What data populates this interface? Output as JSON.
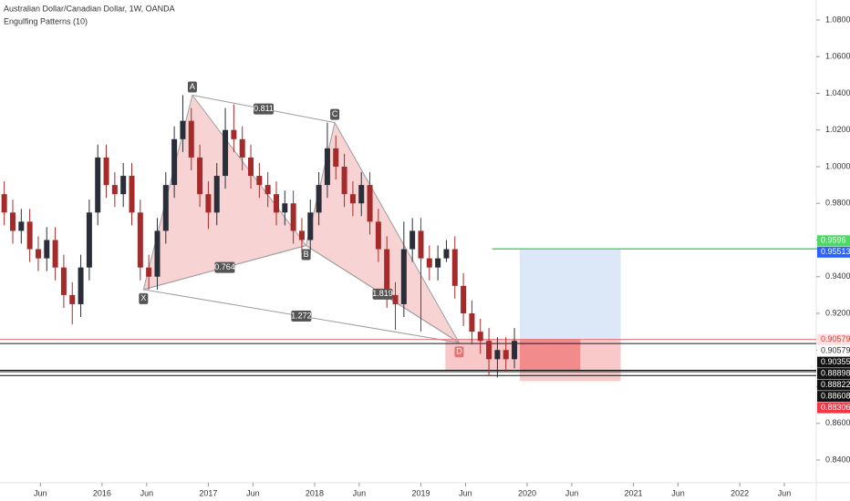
{
  "chart_data": {
    "type": "candlestick",
    "title": "Australian Dollar/Canadian Dollar, 1W, OANDA",
    "subtitle": "Engulfing Patterns (10)",
    "up_color": "#2a2e39",
    "down_color": "#a52a2a",
    "x": [
      2015.08,
      2015.16,
      2015.24,
      2015.32,
      2015.4,
      2015.48,
      2015.56,
      2015.64,
      2015.72,
      2015.8,
      2015.88,
      2015.96,
      2016.04,
      2016.12,
      2016.2,
      2016.28,
      2016.36,
      2016.44,
      2016.52,
      2016.6,
      2016.68,
      2016.76,
      2016.84,
      2016.92,
      2017.0,
      2017.08,
      2017.16,
      2017.24,
      2017.32,
      2017.4,
      2017.48,
      2017.56,
      2017.64,
      2017.72,
      2017.8,
      2017.88,
      2017.96,
      2018.04,
      2018.12,
      2018.2,
      2018.28,
      2018.36,
      2018.44,
      2018.52,
      2018.6,
      2018.68,
      2018.76,
      2018.84,
      2018.92,
      2019.0,
      2019.08,
      2019.16,
      2019.24,
      2019.32,
      2019.4,
      2019.48,
      2019.56,
      2019.64,
      2019.72,
      2019.8,
      2019.88
    ],
    "open": [
      0.985,
      0.975,
      0.965,
      0.97,
      0.955,
      0.95,
      0.96,
      0.945,
      0.93,
      0.925,
      0.945,
      0.975,
      1.005,
      0.99,
      0.985,
      0.995,
      0.975,
      0.945,
      0.94,
      0.965,
      0.99,
      1.015,
      1.025,
      1.005,
      0.985,
      0.975,
      0.995,
      1.02,
      1.015,
      1.005,
      0.995,
      0.99,
      0.985,
      0.975,
      0.98,
      0.965,
      0.96,
      0.975,
      0.99,
      1.01,
      1.0,
      0.985,
      0.98,
      0.99,
      0.97,
      0.955,
      0.93,
      0.925,
      0.955,
      0.965,
      0.95,
      0.945,
      0.95,
      0.955,
      0.935,
      0.92,
      0.91,
      0.905,
      0.895,
      0.9,
      0.895
    ],
    "high": [
      0.992,
      0.982,
      0.977,
      0.977,
      0.962,
      0.967,
      0.967,
      0.952,
      0.937,
      0.952,
      0.982,
      1.012,
      1.012,
      0.997,
      1.002,
      1.002,
      0.982,
      0.952,
      0.972,
      0.997,
      1.022,
      1.039,
      1.032,
      1.012,
      0.992,
      1.002,
      1.032,
      1.034,
      1.022,
      1.012,
      1.002,
      0.997,
      0.992,
      0.987,
      0.987,
      0.972,
      0.982,
      0.997,
      1.024,
      1.017,
      1.007,
      0.992,
      0.997,
      0.997,
      0.977,
      0.962,
      0.937,
      0.97,
      0.972,
      0.972,
      0.957,
      0.957,
      0.96,
      0.962,
      0.942,
      0.927,
      0.917,
      0.912,
      0.907,
      0.907,
      0.912
    ],
    "low": [
      0.968,
      0.958,
      0.958,
      0.948,
      0.943,
      0.943,
      0.938,
      0.923,
      0.914,
      0.918,
      0.938,
      0.968,
      0.983,
      0.978,
      0.978,
      0.968,
      0.938,
      0.933,
      0.933,
      0.958,
      0.983,
      1.008,
      0.998,
      0.978,
      0.966,
      0.968,
      0.988,
      1.008,
      0.998,
      0.988,
      0.983,
      0.978,
      0.968,
      0.968,
      0.958,
      0.953,
      0.953,
      0.968,
      0.983,
      0.993,
      0.978,
      0.973,
      0.973,
      0.963,
      0.948,
      0.923,
      0.911,
      0.918,
      0.948,
      0.91,
      0.938,
      0.938,
      0.948,
      0.928,
      0.913,
      0.903,
      0.898,
      0.886,
      0.885,
      0.888,
      0.89
    ],
    "close": [
      0.975,
      0.965,
      0.97,
      0.955,
      0.95,
      0.96,
      0.945,
      0.93,
      0.925,
      0.945,
      0.975,
      1.005,
      0.99,
      0.985,
      0.995,
      0.975,
      0.945,
      0.94,
      0.965,
      0.99,
      1.015,
      1.025,
      1.005,
      0.985,
      0.975,
      0.995,
      1.02,
      1.015,
      1.005,
      0.995,
      0.99,
      0.985,
      0.975,
      0.98,
      0.965,
      0.96,
      0.975,
      0.99,
      1.01,
      1.0,
      0.985,
      0.98,
      0.99,
      0.97,
      0.955,
      0.93,
      0.925,
      0.955,
      0.965,
      0.95,
      0.945,
      0.95,
      0.955,
      0.935,
      0.92,
      0.91,
      0.905,
      0.895,
      0.9,
      0.895,
      0.905
    ],
    "xlim": [
      2015.04,
      2022.72
    ],
    "xticks": [
      {
        "value": 2015.42,
        "label": "Jun"
      },
      {
        "value": 2016,
        "label": "2016"
      },
      {
        "value": 2016.42,
        "label": "Jun"
      },
      {
        "value": 2017,
        "label": "2017"
      },
      {
        "value": 2017.42,
        "label": "Jun"
      },
      {
        "value": 2018,
        "label": "2018"
      },
      {
        "value": 2018.42,
        "label": "Jun"
      },
      {
        "value": 2019,
        "label": "2019"
      },
      {
        "value": 2019.42,
        "label": "Jun"
      },
      {
        "value": 2020,
        "label": "2020"
      },
      {
        "value": 2020.42,
        "label": "Jun"
      },
      {
        "value": 2021,
        "label": "2021"
      },
      {
        "value": 2021.42,
        "label": "Jun"
      },
      {
        "value": 2022,
        "label": "2022"
      },
      {
        "value": 2022.42,
        "label": "Jun"
      }
    ],
    "ylim": [
      0.8276,
      1.0909
    ],
    "yticks": [
      {
        "value": 0.84,
        "label": "0.84000"
      },
      {
        "value": 0.86,
        "label": "0.86000"
      },
      {
        "value": 0.88,
        "label": "0.88000"
      },
      {
        "value": 0.9,
        "label": "0.90000"
      },
      {
        "value": 0.92,
        "label": "0.92000"
      },
      {
        "value": 0.94,
        "label": "0.94000"
      },
      {
        "value": 0.96,
        "label": "0.96000"
      },
      {
        "value": 0.98,
        "label": "0.98000"
      },
      {
        "value": 1.0,
        "label": "1.00000"
      },
      {
        "value": 1.02,
        "label": "1.02000"
      },
      {
        "value": 1.04,
        "label": "1.04000"
      },
      {
        "value": 1.06,
        "label": "1.06000"
      },
      {
        "value": 1.08,
        "label": "1.08000"
      }
    ],
    "pattern": {
      "points": [
        {
          "label": "X",
          "x": 2016.39,
          "y": 0.933
        },
        {
          "label": "A",
          "x": 2016.85,
          "y": 1.039
        },
        {
          "label": "B",
          "x": 2017.92,
          "y": 0.957
        },
        {
          "label": "C",
          "x": 2018.19,
          "y": 1.024
        },
        {
          "label": "D",
          "x": 2019.36,
          "y": 0.904
        }
      ],
      "ratios": [
        0.811,
        0.764,
        1.819,
        1.272
      ],
      "fill": "#f4b6b6",
      "line_color": "#9e9e9e"
    },
    "position": {
      "entry": 0.90579,
      "target": 0.95513,
      "stop": 0.88306,
      "x": [
        2019.93,
        2020.88
      ],
      "profit_color": "#dce8f8",
      "loss_color": "#f9c9c9",
      "stop_strong_color": "#f28b8b",
      "strong_x_end": 2020.5
    },
    "zone": {
      "x": [
        2019.23,
        2019.93
      ],
      "top": 0.90579,
      "bottom": 0.88898,
      "color": "#f6baba"
    },
    "target_line": {
      "value": 0.95513,
      "x_start": 2019.67,
      "color": "#4cd964"
    },
    "levels": [
      {
        "value": 0.90579,
        "color": "#e57373"
      },
      {
        "value": 0.90355,
        "color": "#1a1a2e"
      },
      {
        "value": 0.88898,
        "color": "#111111"
      },
      {
        "value": 0.88822,
        "color": "#111111"
      },
      {
        "value": 0.88608,
        "color": "#111111"
      }
    ],
    "price_labels": [
      {
        "value": 0.9596,
        "label": "0.9596",
        "bg": "#4cd964",
        "fg": "#ffffff"
      },
      {
        "value": 0.95513,
        "label": "0.95513",
        "bg": "#2962ff",
        "fg": "#ffffff"
      },
      {
        "value": 0.90579,
        "label": "0.90579",
        "bg": "#fde0e0",
        "fg": "#e53935"
      },
      {
        "value": 0.90579,
        "label": "0.90579",
        "bg": "#ffffff",
        "fg": "#333333"
      },
      {
        "value": 0.90355,
        "label": "0.90355",
        "bg": "#111111",
        "fg": "#ffffff"
      },
      {
        "value": 0.88898,
        "label": "0.88898",
        "bg": "#111111",
        "fg": "#ffffff"
      },
      {
        "value": 0.88822,
        "label": "0.88822",
        "bg": "#111111",
        "fg": "#ffffff"
      },
      {
        "value": 0.88608,
        "label": "0.88608",
        "bg": "#111111",
        "fg": "#ffffff"
      },
      {
        "value": 0.88306,
        "label": "0.88306",
        "bg": "#f23645",
        "fg": "#ffffff"
      }
    ]
  }
}
